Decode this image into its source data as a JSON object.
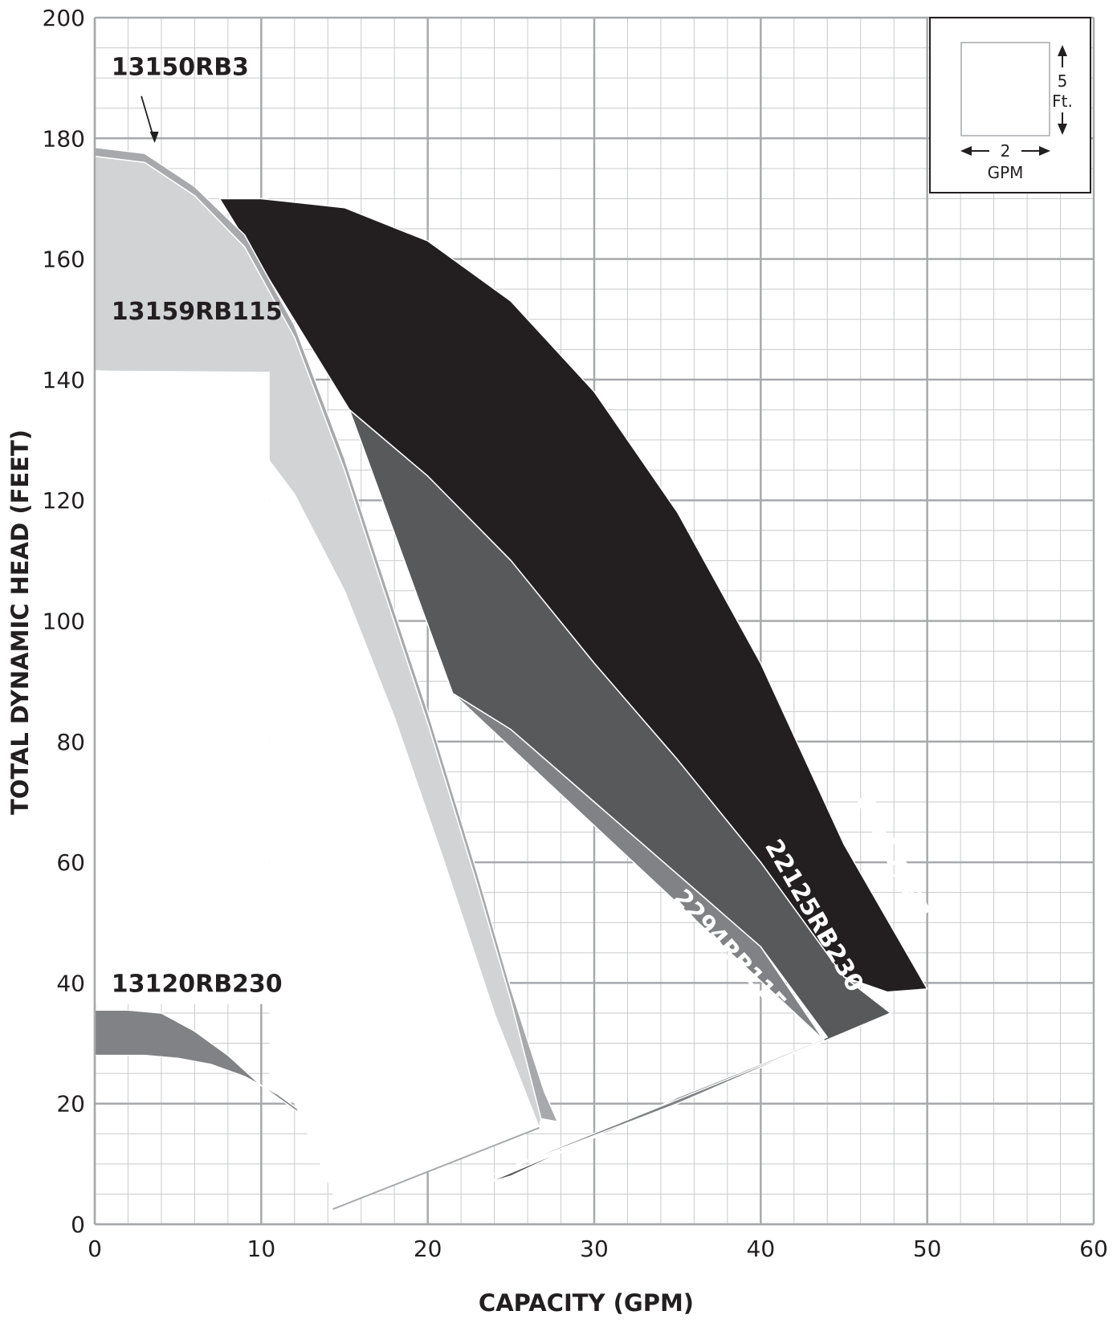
{
  "chart_data": {
    "type": "area",
    "xlabel": "CAPACITY (GPM)",
    "ylabel": "TOTAL DYNAMIC HEAD (FEET)",
    "xlim": [
      0,
      60
    ],
    "ylim": [
      0,
      200
    ],
    "x_ticks": [
      "0",
      "10",
      "20",
      "30",
      "40",
      "50",
      "60"
    ],
    "y_ticks": [
      "0",
      "20",
      "40",
      "60",
      "80",
      "100",
      "120",
      "140",
      "160",
      "180",
      "200"
    ],
    "grid": true,
    "minor_grid": {
      "x_step": 2,
      "y_step": 5
    },
    "scale_legend": {
      "vertical_value": "5",
      "vertical_unit": "Ft.",
      "horizontal_value": "2",
      "horizontal_unit": "GPM"
    },
    "series": [
      {
        "name": "22157RB3",
        "color": "#231f20",
        "label_color": "#ffffff",
        "upper": [
          [
            7.5,
            170
          ],
          [
            10,
            170
          ],
          [
            15,
            168.5
          ],
          [
            20,
            163
          ],
          [
            25,
            153
          ],
          [
            30,
            138
          ],
          [
            35,
            118
          ],
          [
            40,
            93
          ],
          [
            45,
            63
          ],
          [
            50,
            39
          ]
        ],
        "lower": [
          [
            15.3,
            135
          ],
          [
            20,
            124
          ],
          [
            25,
            110
          ],
          [
            30,
            93
          ],
          [
            35,
            77
          ],
          [
            40,
            60
          ],
          [
            45,
            41
          ],
          [
            47.6,
            38.5
          ]
        ]
      },
      {
        "name": "22125RB230",
        "color": "#58595b",
        "label_color": "#ffffff",
        "upper": [
          [
            15.3,
            135
          ],
          [
            20,
            124
          ],
          [
            25,
            110
          ],
          [
            30,
            93
          ],
          [
            35,
            77
          ],
          [
            40,
            60
          ],
          [
            45,
            41
          ],
          [
            47.8,
            35
          ]
        ],
        "lower": [
          [
            21.5,
            88
          ],
          [
            25,
            82
          ],
          [
            30,
            70
          ],
          [
            35,
            58
          ],
          [
            40,
            46
          ],
          [
            44,
            31
          ],
          [
            43.6,
            30.5
          ],
          [
            35,
            21
          ],
          [
            25,
            8
          ],
          [
            23.5,
            6.8
          ]
        ]
      },
      {
        "name": "2294RB115",
        "color": "#808285",
        "label_color": "#ffffff",
        "upper": [
          [
            21.5,
            88
          ],
          [
            25,
            82
          ],
          [
            30,
            70
          ],
          [
            35,
            58
          ],
          [
            40,
            46
          ],
          [
            43.8,
            30.5
          ]
        ],
        "lower": [
          [
            43.8,
            30.5
          ],
          [
            35,
            20
          ],
          [
            23.2,
            7.5
          ]
        ]
      },
      {
        "name": "13150RB3",
        "color": "#a7a9ac",
        "label_color": "#231f20",
        "upper": [
          [
            0,
            178.5
          ],
          [
            3,
            177.5
          ],
          [
            6,
            172
          ],
          [
            9,
            164
          ],
          [
            12,
            149
          ],
          [
            15,
            127
          ],
          [
            17,
            110
          ],
          [
            20,
            85
          ],
          [
            23,
            58
          ],
          [
            25,
            39
          ],
          [
            27,
            22
          ],
          [
            27.8,
            17
          ]
        ],
        "lower": [
          [
            0,
            177
          ],
          [
            3,
            176
          ],
          [
            6,
            170.5
          ],
          [
            9,
            162
          ],
          [
            12,
            147
          ],
          [
            15,
            125
          ],
          [
            17,
            108
          ],
          [
            20,
            83
          ],
          [
            23,
            56
          ],
          [
            25,
            37
          ],
          [
            26.8,
            17.5
          ]
        ]
      },
      {
        "name": "13159RB115",
        "color": "#d1d3d4",
        "label_color": "#231f20",
        "upper": [
          [
            0,
            177
          ],
          [
            3,
            176
          ],
          [
            6,
            170.5
          ],
          [
            9,
            162
          ],
          [
            12,
            147
          ],
          [
            15,
            125
          ],
          [
            17,
            108
          ],
          [
            20,
            83
          ],
          [
            23,
            56
          ],
          [
            25,
            37
          ],
          [
            26.8,
            17.5
          ]
        ],
        "lower": [
          [
            0,
            141.5
          ],
          [
            3,
            141
          ],
          [
            6,
            138
          ],
          [
            9,
            132
          ],
          [
            12,
            121
          ],
          [
            15,
            105
          ],
          [
            18,
            84
          ],
          [
            21,
            60
          ],
          [
            24,
            35
          ],
          [
            26.7,
            16
          ]
        ]
      },
      {
        "name": "13120RB230",
        "color": "#808285",
        "label_color": "#231f20",
        "upper": [
          [
            0,
            35.5
          ],
          [
            2,
            35.5
          ],
          [
            4,
            35
          ],
          [
            6,
            32
          ],
          [
            8,
            28
          ],
          [
            10,
            23
          ],
          [
            12,
            19
          ],
          [
            14,
            15.5
          ],
          [
            15,
            14
          ],
          [
            16.5,
            12.5
          ]
        ],
        "lower": [
          [
            0,
            28
          ],
          [
            3,
            28
          ],
          [
            5,
            27.5
          ],
          [
            7,
            26.5
          ],
          [
            9,
            24.5
          ],
          [
            11,
            21.5
          ],
          [
            13,
            17.5
          ],
          [
            15,
            13
          ],
          [
            16.5,
            12.5
          ]
        ]
      }
    ]
  }
}
